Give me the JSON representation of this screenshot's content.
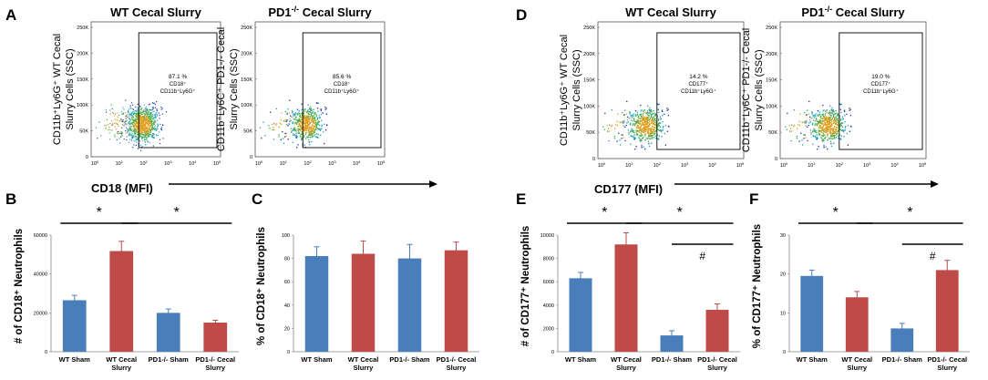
{
  "chart_data": [
    {
      "panel": "A",
      "type": "scatter",
      "xlabel": "CD18 (MFI)",
      "ticks_y": [
        "0",
        "50K",
        "100K",
        "150K",
        "200K",
        "250K"
      ],
      "ticks_x_exp": [
        "0",
        "1",
        "2",
        "3",
        "4",
        "5"
      ],
      "plots": [
        {
          "title": "WT  Cecal Slurry",
          "title_sup": "",
          "ylabel": [
            "CD11b⁺Ly6G⁺ WT Cecal",
            "Slurry Cells (SSC)"
          ],
          "gate_pct": "87.1 %",
          "gate_lines": [
            "CD18⁺",
            "CD11b⁺Ly6G⁺"
          ],
          "gate_x_decade": 1.8
        },
        {
          "title_pre": "PD1",
          "title_sup": "-/-",
          "title_post": "  Cecal Slurry",
          "ylabel": [
            "CD11b⁺Ly6C⁺ PD1-/- Cecal",
            "Slurry Cells (SSC)"
          ],
          "gate_pct": "85.6 %",
          "gate_lines": [
            "CD18⁺",
            "CD11b⁺Ly6G⁺"
          ],
          "gate_x_decade": 1.8
        }
      ]
    },
    {
      "panel": "D",
      "type": "scatter",
      "xlabel": "CD177 (MFI)",
      "ticks_y": [
        "0",
        "50K",
        "100K",
        "150K",
        "200K",
        "250K"
      ],
      "ticks_x_exp": [
        "0",
        "1",
        "2",
        "3",
        "4",
        "5"
      ],
      "plots": [
        {
          "title": "WT  Cecal Slurry",
          "title_sup": "",
          "ylabel": [
            "CD11b⁺Ly6G⁺ WT Cecal",
            "Slurry Cells  (SSC)"
          ],
          "gate_pct": "14.2 %",
          "gate_lines": [
            "CD177⁺",
            "CD11b⁺Ly6G⁺"
          ],
          "gate_x_decade": 2.0
        },
        {
          "title_pre": "PD1",
          "title_sup": "-/-",
          "title_post": "  Cecal Slurry",
          "ylabel": [
            "CD11b⁺Ly6C⁺ PD1-/- Cecal",
            "Slurry Cells (SSC)"
          ],
          "gate_pct": "19.0 %",
          "gate_lines": [
            "CD177⁺",
            "CD11b⁺Ly6G⁺"
          ],
          "gate_x_decade": 2.0
        }
      ]
    },
    {
      "panel": "B",
      "type": "bar",
      "ylabel": "# of CD18⁺ Neutrophils",
      "categories": [
        [
          "WT Sham"
        ],
        [
          "WT Cecal",
          "Slurry"
        ],
        [
          "PD1-/- Sham"
        ],
        [
          "PD1-/- Cecal",
          "Slurry"
        ]
      ],
      "values": [
        26500,
        51800,
        20000,
        15000
      ],
      "errors": [
        2500,
        5000,
        2000,
        1200
      ],
      "colors": [
        "#4a7ebb",
        "#be4b48",
        "#4a7ebb",
        "#be4b48"
      ],
      "ylim": [
        0,
        60000
      ],
      "yticks": [
        "0",
        "20000",
        "40000",
        "60000"
      ],
      "sig": [
        {
          "from": 0,
          "to": 1,
          "label": "*"
        },
        {
          "from": 1,
          "to": 3,
          "label": "*"
        }
      ]
    },
    {
      "panel": "C",
      "type": "bar",
      "ylabel": "% of CD18⁺ Neutrophils",
      "categories": [
        [
          "WT Sham"
        ],
        [
          "WT Cecal",
          "Slurry"
        ],
        [
          "PD1-/- Sham"
        ],
        [
          "PD1-/- Cecal",
          "Slurry"
        ]
      ],
      "values": [
        82,
        84,
        80,
        87
      ],
      "errors": [
        8,
        11,
        12,
        7
      ],
      "colors": [
        "#4a7ebb",
        "#be4b48",
        "#4a7ebb",
        "#be4b48"
      ],
      "ylim": [
        0,
        100
      ],
      "yticks": [
        "0",
        "20",
        "40",
        "60",
        "80",
        "100"
      ],
      "sig": []
    },
    {
      "panel": "E",
      "type": "bar",
      "ylabel": "# of CD177⁺ Neutrophils",
      "categories": [
        [
          "WT Sham"
        ],
        [
          "WT Cecal",
          "Slurry"
        ],
        [
          "PD1-/- Sham"
        ],
        [
          "PD1-/- Cecal",
          "Slurry"
        ]
      ],
      "values": [
        6300,
        9200,
        1400,
        3600
      ],
      "errors": [
        500,
        1000,
        400,
        500
      ],
      "colors": [
        "#4a7ebb",
        "#be4b48",
        "#4a7ebb",
        "#be4b48"
      ],
      "ylim": [
        0,
        10000
      ],
      "yticks": [
        "0",
        "2000",
        "4000",
        "6000",
        "8000",
        "10000"
      ],
      "sig": [
        {
          "from": 0,
          "to": 1,
          "label": "*"
        },
        {
          "from": 1,
          "to": 3,
          "label": "*"
        },
        {
          "from": 2,
          "to": 3,
          "label": "#"
        }
      ]
    },
    {
      "panel": "F",
      "type": "bar",
      "ylabel": "% of CD177⁺ Neutrophils",
      "categories": [
        [
          "WT Sham"
        ],
        [
          "WT Cecal",
          "Slurry"
        ],
        [
          "PD1-/- Sham"
        ],
        [
          "PD1-/- Cecal",
          "Slurry"
        ]
      ],
      "values": [
        19.5,
        14,
        6,
        21
      ],
      "errors": [
        1.5,
        1.5,
        1.3,
        2.5
      ],
      "colors": [
        "#4a7ebb",
        "#be4b48",
        "#4a7ebb",
        "#be4b48"
      ],
      "ylim": [
        0,
        30
      ],
      "yticks": [
        "0",
        "10",
        "20",
        "30"
      ],
      "sig": [
        {
          "from": 0,
          "to": 1,
          "label": "*"
        },
        {
          "from": 1,
          "to": 3,
          "label": "*"
        },
        {
          "from": 2,
          "to": 3,
          "label": "#"
        }
      ]
    }
  ],
  "colors": {
    "blue": "#4a7ebb",
    "red": "#be4b48"
  }
}
